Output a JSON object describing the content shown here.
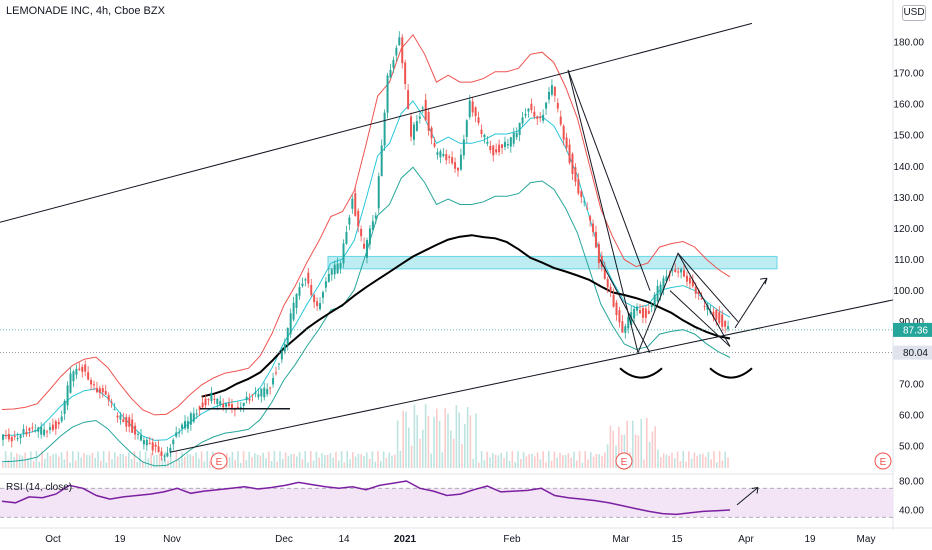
{
  "header": {
    "symbol_title": "LEMONADE INC, 4h, Cboe BZX",
    "currency": "USD"
  },
  "rsi_panel": {
    "label": "RSI (14, close)"
  },
  "colors": {
    "candle_up": "#26a69a",
    "candle_down": "#ef5350",
    "bollinger_upper": "#ef5350",
    "bollinger_lower": "#26a69a",
    "ma_line": "#000000",
    "sr_zone_fill": "#b2ebf2",
    "sr_zone_border": "#4dd0e1",
    "rsi_line": "#7b1fa2",
    "rsi_band": "#f3e5f5",
    "price_badge": "#26a69a",
    "support_badge": "#e0e3eb"
  },
  "earnings_markers": [
    {
      "label": "E"
    },
    {
      "label": "E"
    },
    {
      "label": "E"
    }
  ],
  "chart_data": [
    {
      "type": "candlestick",
      "title": "LEMONADE INC, 4h, Cboe BZX",
      "y_unit": "USD",
      "ylim": [
        40,
        195
      ],
      "y_ticks": [
        50,
        60,
        70,
        80,
        90,
        100,
        110,
        120,
        130,
        140,
        150,
        160,
        170,
        180
      ],
      "x_tick_labels": [
        "Oct",
        "19",
        "Nov",
        "Dec",
        "14",
        "2021",
        "Feb",
        "Mar",
        "15",
        "Apr",
        "19",
        "May"
      ],
      "last_price_label": "87.36",
      "support_level_label": "80.04",
      "shaded_zone": [
        107,
        111
      ],
      "trendlines": [
        {
          "from": [
            "Sep",
            122
          ],
          "to": [
            "Apr",
            186
          ]
        },
        {
          "from": [
            "Oct",
            48
          ],
          "to": [
            "May",
            97
          ]
        },
        {
          "from": [
            "Nov",
            62
          ],
          "to": [
            "Dec",
            62
          ]
        }
      ],
      "close_path": [
        52,
        53,
        55,
        54,
        56,
        57,
        72,
        75,
        70,
        65,
        60,
        57,
        52,
        49,
        48,
        53,
        58,
        63,
        66,
        62,
        63,
        65,
        66,
        70,
        80,
        95,
        105,
        95,
        104,
        110,
        130,
        112,
        125,
        170,
        180,
        150,
        160,
        145,
        142,
        140,
        160,
        150,
        145,
        147,
        150,
        160,
        155,
        165,
        150,
        135,
        125,
        110,
        100,
        85,
        95,
        92,
        100,
        105,
        108,
        100,
        95,
        92,
        87.36
      ]
    },
    {
      "type": "line",
      "title": "RSI (14, close)",
      "ylim": [
        30,
        85
      ],
      "y_ticks": [
        40,
        80
      ],
      "band": [
        30,
        70
      ],
      "values": [
        52,
        50,
        58,
        57,
        62,
        74,
        70,
        60,
        55,
        58,
        60,
        62,
        65,
        70,
        63,
        66,
        68,
        70,
        72,
        69,
        71,
        74,
        78,
        75,
        72,
        70,
        72,
        68,
        74,
        77,
        80,
        70,
        66,
        60,
        62,
        68,
        73,
        65,
        66,
        67,
        70,
        60,
        57,
        55,
        53,
        50,
        46,
        42,
        38,
        35,
        34,
        36,
        38,
        39,
        40
      ]
    }
  ]
}
